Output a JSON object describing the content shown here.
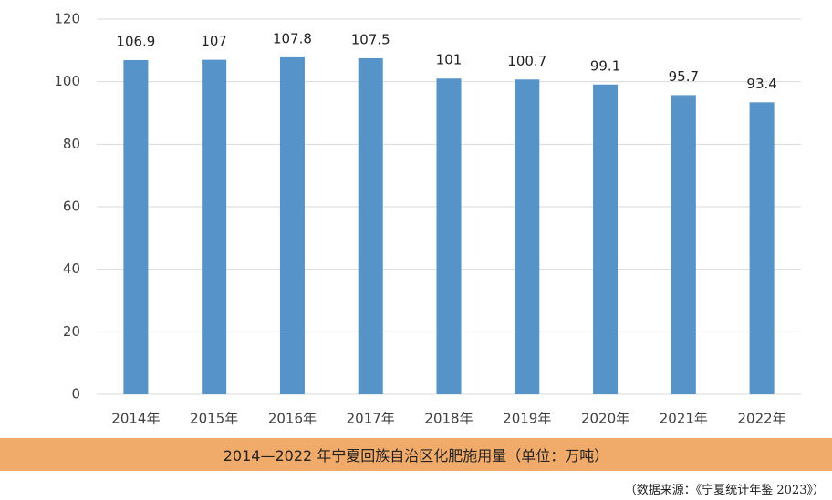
{
  "chart_data": {
    "type": "bar",
    "title": "2014—2022 年宁夏回族自治区化肥施用量（单位：万吨）",
    "source": "（数据来源：《宁夏统计年鉴 2023》）",
    "categories": [
      "2014年",
      "2015年",
      "2016年",
      "2017年",
      "2018年",
      "2019年",
      "2020年",
      "2021年",
      "2022年"
    ],
    "values": [
      106.9,
      107,
      107.8,
      107.5,
      101,
      100.7,
      99.1,
      95.7,
      93.4
    ],
    "color": "#5593c9",
    "ylim": [
      0,
      120
    ],
    "yticks": [
      0,
      20,
      40,
      60,
      80,
      100,
      120
    ],
    "grid": true
  }
}
